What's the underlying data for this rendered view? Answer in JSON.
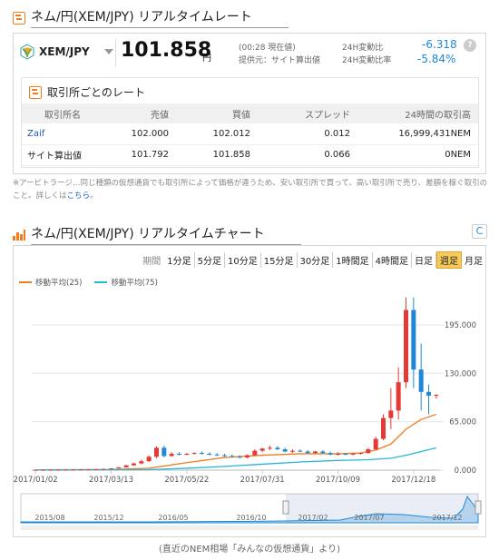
{
  "rate_section": {
    "title": "ネム/円(XEM/JPY) リアルタイムレート",
    "pair": "XEM/JPY",
    "price": "101.858",
    "price_unit": "円",
    "time_note": "(00:28 現在値)",
    "provider_note": "提供元：サイト算出値",
    "change_label": "24H変動比",
    "change_value": "-6.318",
    "change_rate_label": "24H変動比率",
    "change_rate_value": "-5.84%",
    "help": "?"
  },
  "exchange_table": {
    "title": "取引所ごとのレート",
    "headers": [
      "取引所名",
      "売値",
      "買値",
      "スプレッド",
      "24時間の取引高"
    ],
    "rows": [
      [
        "Zaif",
        "102.000",
        "102.012",
        "0.012",
        "16,999,431NEM"
      ],
      [
        "サイト算出値",
        "101.792",
        "101.858",
        "0.066",
        "0NEM"
      ]
    ]
  },
  "note": {
    "text": "※アービトラージ…同じ種類の仮想通貨でも取引所によって価格が違うため、安い取引所で買って、高い取引所で売り、差額を稼ぐ取引のこと。詳しくは",
    "link": "こちら",
    "end": "。"
  },
  "chart_section": {
    "title": "ネム/円(XEM/JPY) リアルタイムチャート",
    "refresh": "C",
    "period_label": "期間",
    "periods": [
      "1分足",
      "5分足",
      "10分足",
      "15分足",
      "30分足",
      "1時間足",
      "4時間足",
      "日足",
      "週足",
      "月足"
    ],
    "active_period": "週足",
    "legend": [
      "移動平均(25)",
      "移動平均(75)"
    ]
  },
  "colors": {
    "accent": "#f07c1e",
    "up": "#e53935",
    "down": "#1e88d6",
    "ma25": "#f07c1e",
    "ma75": "#29b6d6"
  },
  "caption": "(直近のNEM相場「みんなの仮想通貨」より)",
  "chart_data": {
    "type": "candlestick",
    "title": "",
    "xlabel": "",
    "ylabel": "",
    "ylim": [
      0,
      240
    ],
    "y_ticks": [
      "195.000",
      "130.000",
      "65.000",
      "0.000"
    ],
    "y_tick_values": [
      195,
      130,
      65,
      0
    ],
    "x_ticks": [
      "2017/01/02",
      "2017/03/13",
      "2017/05/22",
      "2017/07/31",
      "2017/10/09",
      "2017/12/18"
    ],
    "x_tick_weeks": [
      0,
      10,
      20,
      30,
      40,
      50
    ],
    "navigator_ticks": [
      "2015/08",
      "2015/12",
      "2016/05",
      "2016/10",
      "2017/02",
      "2017/07",
      "2017/12"
    ],
    "candles": [
      {
        "w": 0,
        "o": 0.4,
        "h": 0.5,
        "l": 0.4,
        "c": 0.45
      },
      {
        "w": 1,
        "o": 0.45,
        "h": 0.5,
        "l": 0.4,
        "c": 0.45
      },
      {
        "w": 2,
        "o": 0.45,
        "h": 0.6,
        "l": 0.4,
        "c": 0.5
      },
      {
        "w": 3,
        "o": 0.5,
        "h": 0.6,
        "l": 0.45,
        "c": 0.55
      },
      {
        "w": 4,
        "o": 0.55,
        "h": 0.7,
        "l": 0.5,
        "c": 0.6
      },
      {
        "w": 5,
        "o": 0.6,
        "h": 0.8,
        "l": 0.55,
        "c": 0.7
      },
      {
        "w": 6,
        "o": 0.7,
        "h": 1.0,
        "l": 0.6,
        "c": 0.8
      },
      {
        "w": 7,
        "o": 0.8,
        "h": 1.2,
        "l": 0.7,
        "c": 1.0
      },
      {
        "w": 8,
        "o": 1.0,
        "h": 1.6,
        "l": 0.9,
        "c": 1.4
      },
      {
        "w": 9,
        "o": 1.4,
        "h": 2.0,
        "l": 1.2,
        "c": 1.6
      },
      {
        "w": 10,
        "o": 1.6,
        "h": 2.6,
        "l": 1.5,
        "c": 2.4
      },
      {
        "w": 11,
        "o": 2.4,
        "h": 4.0,
        "l": 2.2,
        "c": 3.8
      },
      {
        "w": 12,
        "o": 3.8,
        "h": 7,
        "l": 3.5,
        "c": 6.5
      },
      {
        "w": 13,
        "o": 6.5,
        "h": 10,
        "l": 6,
        "c": 9
      },
      {
        "w": 14,
        "o": 9,
        "h": 14,
        "l": 8,
        "c": 12
      },
      {
        "w": 15,
        "o": 12,
        "h": 20,
        "l": 11,
        "c": 18
      },
      {
        "w": 16,
        "o": 18,
        "h": 32,
        "l": 16,
        "c": 30
      },
      {
        "w": 17,
        "o": 30,
        "h": 33,
        "l": 17,
        "c": 19
      },
      {
        "w": 18,
        "o": 19,
        "h": 24,
        "l": 18,
        "c": 22
      },
      {
        "w": 19,
        "o": 22,
        "h": 24,
        "l": 20,
        "c": 21
      },
      {
        "w": 20,
        "o": 21,
        "h": 23,
        "l": 20,
        "c": 22
      },
      {
        "w": 21,
        "o": 22,
        "h": 24,
        "l": 21,
        "c": 23
      },
      {
        "w": 22,
        "o": 23,
        "h": 25,
        "l": 21,
        "c": 22
      },
      {
        "w": 23,
        "o": 22,
        "h": 24,
        "l": 20,
        "c": 21
      },
      {
        "w": 24,
        "o": 21,
        "h": 23,
        "l": 19,
        "c": 20
      },
      {
        "w": 25,
        "o": 20,
        "h": 22,
        "l": 18,
        "c": 19
      },
      {
        "w": 26,
        "o": 19,
        "h": 21,
        "l": 17,
        "c": 18
      },
      {
        "w": 27,
        "o": 18,
        "h": 20,
        "l": 16,
        "c": 17
      },
      {
        "w": 28,
        "o": 17,
        "h": 21,
        "l": 16,
        "c": 20
      },
      {
        "w": 29,
        "o": 20,
        "h": 28,
        "l": 19,
        "c": 26
      },
      {
        "w": 30,
        "o": 26,
        "h": 30,
        "l": 24,
        "c": 29
      },
      {
        "w": 31,
        "o": 29,
        "h": 33,
        "l": 27,
        "c": 30
      },
      {
        "w": 32,
        "o": 30,
        "h": 32,
        "l": 27,
        "c": 28
      },
      {
        "w": 33,
        "o": 28,
        "h": 30,
        "l": 24,
        "c": 25
      },
      {
        "w": 34,
        "o": 25,
        "h": 28,
        "l": 23,
        "c": 26
      },
      {
        "w": 35,
        "o": 26,
        "h": 28,
        "l": 24,
        "c": 25
      },
      {
        "w": 36,
        "o": 25,
        "h": 27,
        "l": 22,
        "c": 23
      },
      {
        "w": 37,
        "o": 23,
        "h": 26,
        "l": 22,
        "c": 25
      },
      {
        "w": 38,
        "o": 25,
        "h": 27,
        "l": 22,
        "c": 23
      },
      {
        "w": 39,
        "o": 23,
        "h": 25,
        "l": 20,
        "c": 21
      },
      {
        "w": 40,
        "o": 21,
        "h": 24,
        "l": 20,
        "c": 22
      },
      {
        "w": 41,
        "o": 22,
        "h": 23,
        "l": 20,
        "c": 21
      },
      {
        "w": 42,
        "o": 21,
        "h": 23,
        "l": 20,
        "c": 22
      },
      {
        "w": 43,
        "o": 22,
        "h": 24,
        "l": 21,
        "c": 23
      },
      {
        "w": 44,
        "o": 23,
        "h": 30,
        "l": 22,
        "c": 28
      },
      {
        "w": 45,
        "o": 28,
        "h": 45,
        "l": 27,
        "c": 42
      },
      {
        "w": 46,
        "o": 42,
        "h": 75,
        "l": 40,
        "c": 70
      },
      {
        "w": 47,
        "o": 70,
        "h": 110,
        "l": 55,
        "c": 80
      },
      {
        "w": 48,
        "o": 80,
        "h": 138,
        "l": 68,
        "c": 118
      },
      {
        "w": 49,
        "o": 118,
        "h": 232,
        "l": 110,
        "c": 215
      },
      {
        "w": 50,
        "o": 215,
        "h": 232,
        "l": 110,
        "c": 135
      },
      {
        "w": 51,
        "o": 135,
        "h": 170,
        "l": 80,
        "c": 105
      },
      {
        "w": 52,
        "o": 105,
        "h": 115,
        "l": 75,
        "c": 100
      },
      {
        "w": 53,
        "o": 100,
        "h": 102,
        "l": 96,
        "c": 101
      }
    ],
    "series": [
      {
        "name": "移動平均(25)",
        "values": [
          [
            0,
            0.4
          ],
          [
            10,
            0.9
          ],
          [
            15,
            2.5
          ],
          [
            20,
            10
          ],
          [
            25,
            17
          ],
          [
            30,
            20
          ],
          [
            35,
            22
          ],
          [
            40,
            22
          ],
          [
            43,
            23
          ],
          [
            45,
            27
          ],
          [
            47,
            35
          ],
          [
            49,
            55
          ],
          [
            51,
            68
          ],
          [
            53,
            75
          ]
        ]
      },
      {
        "name": "移動平均(75)",
        "values": [
          [
            0,
            0.2
          ],
          [
            15,
            0.6
          ],
          [
            20,
            2.5
          ],
          [
            25,
            5
          ],
          [
            30,
            8
          ],
          [
            35,
            11
          ],
          [
            40,
            13
          ],
          [
            44,
            14
          ],
          [
            47,
            16
          ],
          [
            49,
            20
          ],
          [
            51,
            25
          ],
          [
            53,
            30
          ]
        ]
      }
    ]
  }
}
